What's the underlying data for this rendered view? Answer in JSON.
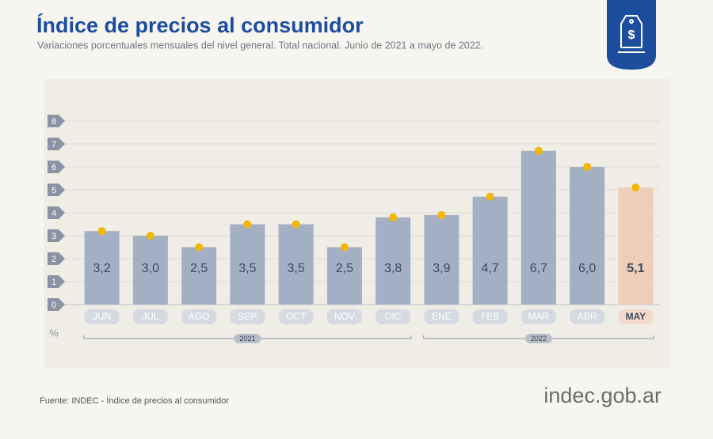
{
  "chart_data": {
    "type": "bar",
    "title": "Índice de precios al consumidor",
    "subtitle": "Variaciones porcentuales mensuales del nivel general. Total nacional. Junio de 2021 a mayo de 2022.",
    "categories": [
      "JUN",
      "JUL",
      "AGO",
      "SEP",
      "OCT",
      "NOV",
      "DIC",
      "ENE",
      "FEB",
      "MAR",
      "ABR",
      "MAY"
    ],
    "values": [
      3.2,
      3.0,
      2.5,
      3.5,
      3.5,
      2.5,
      3.8,
      3.9,
      4.7,
      6.7,
      6.0,
      5.1
    ],
    "value_labels": [
      "3,2",
      "3,0",
      "2,5",
      "3,5",
      "3,5",
      "2,5",
      "3,8",
      "3,9",
      "4,7",
      "6,7",
      "6,0",
      "5,1"
    ],
    "colors": [
      "#a3afc3",
      "#a3afc3",
      "#a3afc3",
      "#a3afc3",
      "#a3afc3",
      "#a3afc3",
      "#a3afc3",
      "#a3afc3",
      "#a3afc3",
      "#a3afc3",
      "#a3afc3",
      "#f0cdb9"
    ],
    "marker_color": "#f2b705",
    "ylim": [
      0,
      8
    ],
    "yticks": [
      0,
      1,
      2,
      3,
      4,
      5,
      6,
      7,
      8
    ],
    "grid": true,
    "y_unit": "%",
    "groups": [
      {
        "label": "2021",
        "count": 7
      },
      {
        "label": "2022",
        "count": 5
      }
    ],
    "source": "Fuente: INDEC - Índice de precios al consumidor",
    "brand": "indec.gob.ar"
  }
}
